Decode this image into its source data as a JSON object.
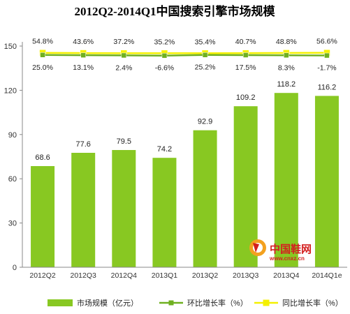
{
  "chart_data": {
    "type": "bar",
    "title": "2012Q2-2014Q1中国搜索引擎市场规模",
    "categories": [
      "2012Q2",
      "2012Q3",
      "2012Q4",
      "2013Q1",
      "2013Q2",
      "2013Q3",
      "2013Q4",
      "2014Q1e"
    ],
    "ylim": [
      0,
      150
    ],
    "yticks": [
      0,
      30,
      60,
      90,
      120,
      150
    ],
    "series": [
      {
        "name": "市场规模（亿元）",
        "kind": "bar",
        "color": "#88c822",
        "values": [
          68.6,
          77.6,
          79.5,
          74.2,
          92.9,
          109.2,
          118.2,
          116.2
        ],
        "labels": [
          "68.6",
          "77.6",
          "79.5",
          "74.2",
          "92.9",
          "109.2",
          "118.2",
          "116.2"
        ]
      },
      {
        "name": "环比增长率（%）",
        "kind": "line",
        "color": "#6fb020",
        "values": [
          25.0,
          13.1,
          2.4,
          -6.6,
          25.2,
          17.5,
          8.3,
          -1.7
        ],
        "labels": [
          "25.0%",
          "13.1%",
          "2.4%",
          "-6.6%",
          "25.2%",
          "17.5%",
          "8.3%",
          "-1.7%"
        ]
      },
      {
        "name": "同比增长率（%）",
        "kind": "line",
        "color": "#f4f000",
        "values": [
          54.8,
          43.6,
          37.2,
          35.2,
          35.4,
          40.7,
          48.8,
          56.6
        ],
        "labels": [
          "54.8%",
          "43.6%",
          "37.2%",
          "35.2%",
          "35.4%",
          "40.7%",
          "48.8%",
          "56.6%"
        ]
      }
    ],
    "legend_position": "bottom",
    "grid": false
  },
  "watermark": {
    "text": "中国鞋网",
    "url": "www.cnxz.cn"
  }
}
